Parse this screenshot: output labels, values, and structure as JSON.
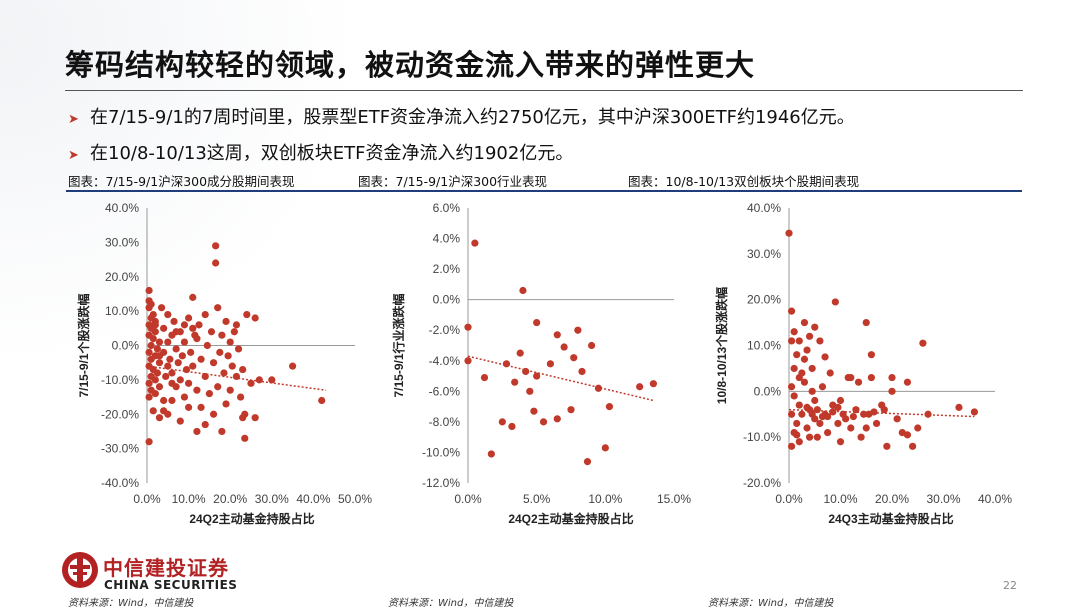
{
  "title": "筹码结构较轻的领域，被动资金流入带来的弹性更大",
  "bullets": [
    "在7/15-9/1的7周时间里，股票型ETF资金净流入约2750亿元，其中沪深300ETF约1946亿元。",
    "在10/8-10/13这周，双创板块ETF资金净流入约1902亿元。"
  ],
  "bullet_marker": "➤",
  "captions": [
    "图表：7/15-9/1沪深300成分股期间表现",
    "图表：7/15-9/1沪深300行业表现",
    "图表：10/8-10/13双创板块个股期间表现"
  ],
  "colors": {
    "marker": "#c0392b",
    "trend": "#c0392b",
    "rule": "#1f3d7a",
    "logo": "#b22222"
  },
  "logo": {
    "cn": "中信建投证券",
    "en": "CHINA SECURITIES",
    "icon": "citic-logo-icon"
  },
  "sources": [
    "资料来源：Wind，中信建投",
    "资料来源：Wind，中信建投",
    "资料来源：Wind，中信建投"
  ],
  "page_number": "22",
  "chart_data": [
    {
      "type": "scatter",
      "ylabel": "7/15-9/1个股涨跌幅",
      "xlabel": "24Q2主动基金持股占比",
      "xlim": [
        0,
        0.5
      ],
      "ylim": [
        -0.4,
        0.4
      ],
      "x_ticks": [
        "0.0%",
        "10.0%",
        "20.0%",
        "30.0%",
        "40.0%",
        "50.0%"
      ],
      "y_ticks": [
        "40.0%",
        "30.0%",
        "20.0%",
        "10.0%",
        "0.0%",
        "-10.0%",
        "-20.0%",
        "-30.0%",
        "-40.0%"
      ],
      "trendline": {
        "x": [
          0,
          0.43
        ],
        "y": [
          -0.06,
          -0.13
        ]
      },
      "points": [
        [
          0.005,
          0.16
        ],
        [
          0.005,
          0.13
        ],
        [
          0.01,
          0.12
        ],
        [
          0.005,
          0.11
        ],
        [
          0.015,
          0.09
        ],
        [
          0.01,
          0.08
        ],
        [
          0.02,
          0.07
        ],
        [
          0.005,
          0.06
        ],
        [
          0.01,
          0.05
        ],
        [
          0.02,
          0.04
        ],
        [
          0.005,
          0.03
        ],
        [
          0.015,
          0.02
        ],
        [
          0.03,
          0.01
        ],
        [
          0.01,
          0.0
        ],
        [
          0.025,
          -0.01
        ],
        [
          0.005,
          -0.02
        ],
        [
          0.02,
          -0.03
        ],
        [
          0.01,
          -0.04
        ],
        [
          0.03,
          -0.05
        ],
        [
          0.005,
          -0.06
        ],
        [
          0.015,
          -0.07
        ],
        [
          0.025,
          -0.08
        ],
        [
          0.01,
          -0.09
        ],
        [
          0.02,
          -0.1
        ],
        [
          0.005,
          -0.11
        ],
        [
          0.03,
          -0.12
        ],
        [
          0.01,
          -0.13
        ],
        [
          0.02,
          -0.14
        ],
        [
          0.005,
          -0.15
        ],
        [
          0.015,
          -0.19
        ],
        [
          0.005,
          -0.28
        ],
        [
          0.04,
          0.05
        ],
        [
          0.04,
          -0.02
        ],
        [
          0.05,
          -0.06
        ],
        [
          0.045,
          -0.09
        ],
        [
          0.035,
          0.11
        ],
        [
          0.05,
          0.09
        ],
        [
          0.06,
          0.03
        ],
        [
          0.055,
          -0.04
        ],
        [
          0.06,
          -0.08
        ],
        [
          0.04,
          -0.16
        ],
        [
          0.05,
          -0.2
        ],
        [
          0.065,
          0.07
        ],
        [
          0.07,
          -0.01
        ],
        [
          0.075,
          -0.05
        ],
        [
          0.07,
          -0.12
        ],
        [
          0.08,
          0.04
        ],
        [
          0.085,
          -0.03
        ],
        [
          0.08,
          -0.1
        ],
        [
          0.09,
          0.01
        ],
        [
          0.095,
          -0.07
        ],
        [
          0.09,
          -0.15
        ],
        [
          0.1,
          0.08
        ],
        [
          0.105,
          -0.02
        ],
        [
          0.1,
          -0.11
        ],
        [
          0.11,
          0.14
        ],
        [
          0.115,
          0.03
        ],
        [
          0.11,
          -0.06
        ],
        [
          0.12,
          -0.13
        ],
        [
          0.125,
          0.06
        ],
        [
          0.13,
          -0.04
        ],
        [
          0.13,
          -0.18
        ],
        [
          0.14,
          0.09
        ],
        [
          0.145,
          0.0
        ],
        [
          0.14,
          -0.09
        ],
        [
          0.15,
          -0.14
        ],
        [
          0.155,
          0.04
        ],
        [
          0.16,
          -0.05
        ],
        [
          0.16,
          -0.2
        ],
        [
          0.17,
          0.11
        ],
        [
          0.175,
          -0.02
        ],
        [
          0.17,
          -0.12
        ],
        [
          0.18,
          0.03
        ],
        [
          0.185,
          -0.08
        ],
        [
          0.18,
          -0.25
        ],
        [
          0.19,
          0.07
        ],
        [
          0.195,
          -0.03
        ],
        [
          0.19,
          -0.17
        ],
        [
          0.2,
          0.01
        ],
        [
          0.205,
          -0.06
        ],
        [
          0.2,
          -0.13
        ],
        [
          0.21,
          0.04
        ],
        [
          0.215,
          -0.09
        ],
        [
          0.22,
          -0.01
        ],
        [
          0.225,
          -0.15
        ],
        [
          0.23,
          -0.07
        ],
        [
          0.235,
          -0.2
        ],
        [
          0.24,
          0.09
        ],
        [
          0.25,
          -0.11
        ],
        [
          0.26,
          0.08
        ],
        [
          0.26,
          -0.21
        ],
        [
          0.27,
          -0.1
        ],
        [
          0.165,
          0.29
        ],
        [
          0.165,
          0.24
        ],
        [
          0.215,
          0.06
        ],
        [
          0.235,
          -0.27
        ],
        [
          0.23,
          -0.21
        ],
        [
          0.14,
          -0.23
        ],
        [
          0.12,
          -0.25
        ],
        [
          0.1,
          -0.18
        ],
        [
          0.08,
          -0.22
        ],
        [
          0.06,
          -0.16
        ],
        [
          0.04,
          -0.19
        ],
        [
          0.03,
          -0.21
        ],
        [
          0.11,
          0.05
        ],
        [
          0.12,
          0.02
        ],
        [
          0.09,
          0.06
        ],
        [
          0.07,
          0.04
        ],
        [
          0.05,
          0.01
        ],
        [
          0.03,
          -0.03
        ],
        [
          0.06,
          -0.11
        ],
        [
          0.02,
          0.06
        ],
        [
          0.35,
          -0.06
        ],
        [
          0.42,
          -0.16
        ],
        [
          0.3,
          -0.1
        ]
      ]
    },
    {
      "type": "scatter",
      "ylabel": "7/15-9/1行业涨跌幅",
      "xlabel": "24Q2主动基金持股占比",
      "xlim": [
        0,
        0.15
      ],
      "ylim": [
        -0.12,
        0.06
      ],
      "x_ticks": [
        "0.0%",
        "5.0%",
        "10.0%",
        "15.0%"
      ],
      "y_ticks": [
        "6.0%",
        "4.0%",
        "2.0%",
        "0.0%",
        "-2.0%",
        "-4.0%",
        "-6.0%",
        "-8.0%",
        "-10.0%",
        "-12.0%"
      ],
      "trendline": {
        "x": [
          0,
          0.135
        ],
        "y": [
          -0.037,
          -0.066
        ]
      },
      "points": [
        [
          0.005,
          0.037
        ],
        [
          0.0,
          -0.018
        ],
        [
          0.0,
          -0.04
        ],
        [
          0.012,
          -0.051
        ],
        [
          0.017,
          -0.101
        ],
        [
          0.025,
          -0.08
        ],
        [
          0.028,
          -0.042
        ],
        [
          0.032,
          -0.083
        ],
        [
          0.034,
          -0.054
        ],
        [
          0.038,
          -0.035
        ],
        [
          0.04,
          0.006
        ],
        [
          0.042,
          -0.047
        ],
        [
          0.045,
          -0.06
        ],
        [
          0.048,
          -0.073
        ],
        [
          0.05,
          -0.05
        ],
        [
          0.05,
          -0.015
        ],
        [
          0.055,
          -0.08
        ],
        [
          0.06,
          -0.042
        ],
        [
          0.065,
          -0.023
        ],
        [
          0.065,
          -0.078
        ],
        [
          0.07,
          -0.031
        ],
        [
          0.075,
          -0.072
        ],
        [
          0.077,
          -0.038
        ],
        [
          0.08,
          -0.02
        ],
        [
          0.083,
          -0.047
        ],
        [
          0.087,
          -0.106
        ],
        [
          0.09,
          -0.03
        ],
        [
          0.095,
          -0.058
        ],
        [
          0.1,
          -0.097
        ],
        [
          0.103,
          -0.07
        ],
        [
          0.125,
          -0.057
        ],
        [
          0.135,
          -0.055
        ]
      ]
    },
    {
      "type": "scatter",
      "ylabel": "10/8-10/13个股涨跌幅",
      "xlabel": "24Q3主动基金持股占比",
      "xlim": [
        0,
        0.4
      ],
      "ylim": [
        -0.2,
        0.4
      ],
      "x_ticks": [
        "0.0%",
        "10.0%",
        "20.0%",
        "30.0%",
        "40.0%"
      ],
      "y_ticks": [
        "40.0%",
        "30.0%",
        "20.0%",
        "10.0%",
        "0.0%",
        "-10.0%",
        "-20.0%"
      ],
      "trendline": {
        "x": [
          0,
          0.36
        ],
        "y": [
          -0.04,
          -0.055
        ]
      },
      "points": [
        [
          0.0,
          0.345
        ],
        [
          0.005,
          0.175
        ],
        [
          0.01,
          0.13
        ],
        [
          0.005,
          0.11
        ],
        [
          0.015,
          0.08
        ],
        [
          0.01,
          0.05
        ],
        [
          0.02,
          0.03
        ],
        [
          0.005,
          0.01
        ],
        [
          0.01,
          -0.01
        ],
        [
          0.02,
          -0.03
        ],
        [
          0.005,
          -0.05
        ],
        [
          0.015,
          -0.07
        ],
        [
          0.01,
          -0.09
        ],
        [
          0.02,
          -0.11
        ],
        [
          0.005,
          -0.12
        ],
        [
          0.03,
          0.15
        ],
        [
          0.035,
          0.09
        ],
        [
          0.03,
          0.02
        ],
        [
          0.04,
          -0.04
        ],
        [
          0.035,
          -0.08
        ],
        [
          0.045,
          0.05
        ],
        [
          0.05,
          -0.02
        ],
        [
          0.05,
          -0.06
        ],
        [
          0.055,
          -0.1
        ],
        [
          0.06,
          0.11
        ],
        [
          0.065,
          0.01
        ],
        [
          0.07,
          -0.05
        ],
        [
          0.075,
          -0.09
        ],
        [
          0.08,
          0.04
        ],
        [
          0.085,
          -0.03
        ],
        [
          0.09,
          0.195
        ],
        [
          0.095,
          -0.07
        ],
        [
          0.1,
          -0.02
        ],
        [
          0.11,
          -0.06
        ],
        [
          0.115,
          0.03
        ],
        [
          0.12,
          -0.08
        ],
        [
          0.13,
          -0.04
        ],
        [
          0.135,
          0.02
        ],
        [
          0.14,
          -0.1
        ],
        [
          0.15,
          0.15
        ],
        [
          0.155,
          -0.05
        ],
        [
          0.16,
          0.03
        ],
        [
          0.17,
          -0.07
        ],
        [
          0.18,
          -0.03
        ],
        [
          0.19,
          -0.12
        ],
        [
          0.2,
          0.0
        ],
        [
          0.21,
          -0.06
        ],
        [
          0.22,
          -0.09
        ],
        [
          0.23,
          0.02
        ],
        [
          0.24,
          -0.12
        ],
        [
          0.25,
          -0.08
        ],
        [
          0.26,
          0.105
        ],
        [
          0.27,
          -0.05
        ],
        [
          0.025,
          -0.05
        ],
        [
          0.045,
          -0.05
        ],
        [
          0.065,
          -0.055
        ],
        [
          0.085,
          -0.045
        ],
        [
          0.105,
          -0.05
        ],
        [
          0.125,
          -0.055
        ],
        [
          0.145,
          -0.05
        ],
        [
          0.165,
          -0.045
        ],
        [
          0.035,
          -0.035
        ],
        [
          0.055,
          -0.04
        ],
        [
          0.075,
          -0.055
        ],
        [
          0.095,
          -0.035
        ],
        [
          0.025,
          0.04
        ],
        [
          0.045,
          0.0
        ],
        [
          0.07,
          0.075
        ],
        [
          0.33,
          -0.035
        ],
        [
          0.36,
          -0.045
        ],
        [
          0.015,
          -0.095
        ],
        [
          0.04,
          -0.1
        ],
        [
          0.06,
          -0.07
        ],
        [
          0.1,
          -0.11
        ],
        [
          0.12,
          0.03
        ],
        [
          0.02,
          0.11
        ],
        [
          0.05,
          0.14
        ],
        [
          0.03,
          0.07
        ],
        [
          0.15,
          -0.08
        ],
        [
          0.185,
          -0.04
        ],
        [
          0.2,
          0.03
        ],
        [
          0.23,
          -0.095
        ],
        [
          0.04,
          0.12
        ],
        [
          0.16,
          0.08
        ]
      ]
    }
  ]
}
